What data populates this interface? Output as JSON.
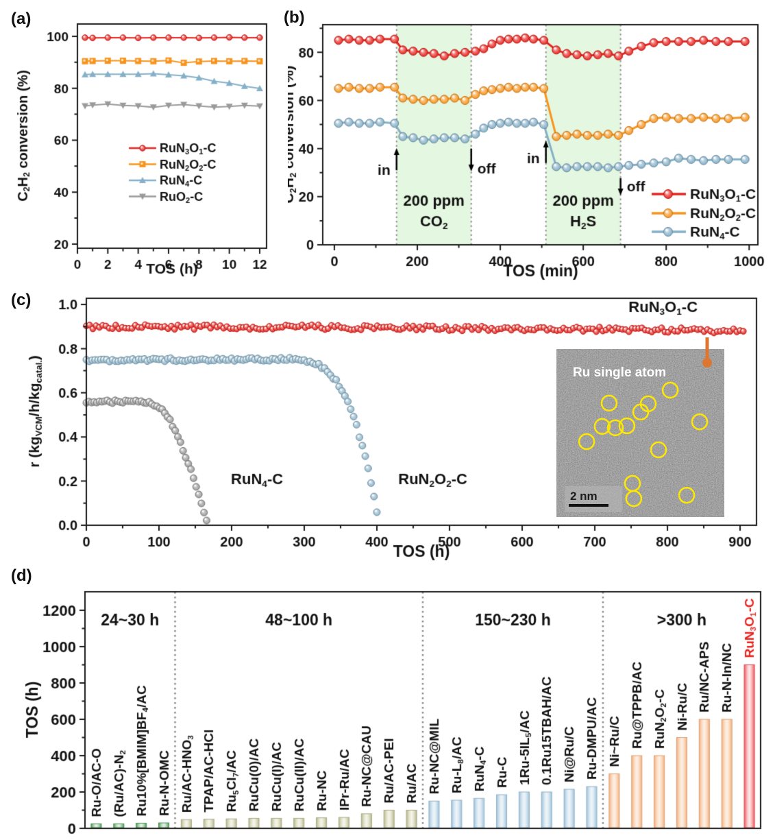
{
  "panel_labels": [
    "(a)",
    "(b)",
    "(c)",
    "(d)"
  ],
  "colors": {
    "red": "#e8241f",
    "orange": "#f7941d",
    "blue": "#85b0c7",
    "gray": "#9a9a9a",
    "region_green": "#e4f7e0",
    "dashed": "#8f8f8f",
    "pointer": "#dd7631",
    "circle_yellow": "#ffe800",
    "axis": "#1a1a1a",
    "text": "#111111"
  },
  "chart_data": [
    {
      "id": "a",
      "type": "line",
      "xlabel": "TOS (h)",
      "ylabel": "C{2}H{2} conversion (%)",
      "xticks": [
        0,
        2,
        4,
        6,
        8,
        10,
        12
      ],
      "xminor": [
        1,
        3,
        5,
        7,
        9,
        11
      ],
      "yticks": [
        20,
        40,
        60,
        80,
        100
      ],
      "yminor": [
        30,
        50,
        70,
        90
      ],
      "xlim": [
        0,
        12.45
      ],
      "ylim": [
        18.4,
        104.75
      ],
      "x": [
        0.5,
        1,
        2,
        3,
        4,
        5,
        6,
        7,
        8,
        9,
        10,
        11,
        12
      ],
      "series": [
        {
          "name": "RuN{3}O{1}-C",
          "color": "#e8241f",
          "marker": "circle",
          "values": [
            99.5,
            99.4,
            99.5,
            99.5,
            99.4,
            99.5,
            99.5,
            99.5,
            99.4,
            99.5,
            99.6,
            99.5,
            99.5
          ]
        },
        {
          "name": "RuN{2}O{2}-C",
          "color": "#f7941d",
          "marker": "square",
          "values": [
            90.4,
            90.5,
            90.6,
            90.6,
            90.5,
            90.4,
            90.7,
            89.8,
            90.3,
            90.5,
            90.4,
            90.5,
            90.4
          ]
        },
        {
          "name": "RuN{4}-C",
          "color": "#85b0c7",
          "marker": "triangle-up",
          "values": [
            85.3,
            85.4,
            85.4,
            85.4,
            85.4,
            85.6,
            85.2,
            84.8,
            84.0,
            82.7,
            82.0,
            80.8,
            79.9
          ]
        },
        {
          "name": "RuO{2}-C",
          "color": "#9a9a9a",
          "marker": "triangle-down",
          "values": [
            73.2,
            73.5,
            73.9,
            73.4,
            73.2,
            72.7,
            73.4,
            73.7,
            73.2,
            72.7,
            73.0,
            73.4,
            73.1
          ]
        }
      ]
    },
    {
      "id": "b",
      "type": "line",
      "xlabel": "TOS (min)",
      "ylabel": "C{2}H{2} conversion (%)",
      "xticks": [
        0,
        200,
        400,
        600,
        800,
        1000
      ],
      "xminor": [
        100,
        300,
        500,
        700,
        900
      ],
      "yticks": [
        0,
        20,
        40,
        60,
        80
      ],
      "yminor": [
        10,
        30,
        50,
        70,
        90
      ],
      "xlim": [
        -28,
        1021
      ],
      "ylim": [
        0,
        91.5
      ],
      "regions": [
        {
          "x0": 150,
          "x1": 330,
          "line1": "200 ppm",
          "line2": "CO{2}",
          "label_y": [
            16.2,
            7.6
          ]
        },
        {
          "x0": 510,
          "x1": 690,
          "line1": "200 ppm",
          "line2": "H{2}S",
          "label_y": [
            16.2,
            7.6
          ]
        }
      ],
      "dashed_x": [
        150,
        330,
        510,
        690
      ],
      "arrows": [
        {
          "x": 150,
          "y_tail": 31,
          "y_head": 40.2,
          "text": "in",
          "tx": -9,
          "ty": 31
        },
        {
          "x": 330,
          "y_tail": 40,
          "y_head": 30.5,
          "text": "off",
          "tx": 9,
          "ty": 31.5
        },
        {
          "x": 510,
          "y_tail": 34,
          "y_head": 43.3,
          "text": "in",
          "tx": -9,
          "ty": 36
        },
        {
          "x": 690,
          "y_tail": 27.7,
          "y_head": 20.5,
          "text": "off",
          "tx": 9,
          "ty": 24.3
        }
      ],
      "x": [
        10,
        35,
        60,
        85,
        110,
        145,
        165,
        190,
        215,
        240,
        265,
        290,
        315,
        340,
        360,
        380,
        400,
        420,
        440,
        460,
        480,
        505,
        535,
        560,
        585,
        610,
        635,
        660,
        685,
        710,
        740,
        770,
        800,
        830,
        860,
        890,
        920,
        950,
        990
      ],
      "series": [
        {
          "name": "RuN{3}O{1}-C",
          "color": "#e8241f",
          "values": [
            85,
            85.5,
            85,
            85,
            85.5,
            85.5,
            81,
            80.5,
            80,
            79.5,
            78.5,
            79.5,
            80,
            80.5,
            81.5,
            83.5,
            85,
            85.5,
            85.5,
            86,
            85.5,
            85,
            81,
            79.5,
            79,
            78.5,
            79,
            79.5,
            78.5,
            80.5,
            82.5,
            84,
            84.5,
            84.5,
            84.5,
            85,
            84.5,
            84.5,
            84.5
          ]
        },
        {
          "name": "RuN{2}O{2}-C",
          "color": "#f7941d",
          "values": [
            65,
            65.5,
            65,
            65,
            65.5,
            65.5,
            61,
            60.5,
            60,
            60.5,
            60.5,
            61,
            60,
            62.5,
            64,
            64.5,
            65,
            65.5,
            65,
            65.5,
            65.5,
            65,
            45,
            45.5,
            46,
            45.5,
            45.5,
            46,
            45.5,
            47.5,
            50,
            52.5,
            53,
            52.5,
            52.5,
            53,
            52.5,
            52.5,
            53
          ]
        },
        {
          "name": "RuN{4}-C",
          "color": "#85b0c7",
          "values": [
            50.5,
            51,
            50.5,
            50.5,
            51,
            50.5,
            45,
            44.5,
            43.5,
            44,
            44.5,
            44.5,
            44,
            46,
            48.5,
            50,
            50.5,
            51,
            50.5,
            50.5,
            51,
            50,
            32.5,
            32,
            32.5,
            32.5,
            32.5,
            32,
            32.5,
            33,
            33.5,
            34,
            34.5,
            36,
            35.5,
            35,
            35.5,
            35.5,
            35.5
          ]
        }
      ]
    },
    {
      "id": "c",
      "type": "scatter",
      "xlabel": "TOS (h)",
      "ylabel": "r (kg{VCM}/h/kg{catal.})",
      "xticks": [
        0,
        100,
        200,
        300,
        400,
        500,
        600,
        700,
        800,
        900
      ],
      "xminor": [
        50,
        150,
        250,
        350,
        450,
        550,
        650,
        750,
        850
      ],
      "yticks": [
        0.0,
        0.2,
        0.4,
        0.6,
        0.8,
        1.0
      ],
      "ytick_labels": [
        "0.0",
        "0.2",
        "0.4",
        "0.6",
        "0.8",
        "1.0"
      ],
      "yminor": [
        0.1,
        0.3,
        0.5,
        0.7,
        0.9
      ],
      "xlim": [
        0,
        922.6
      ],
      "ylim": [
        0,
        1.028
      ],
      "series": [
        {
          "name": "RuN{3}O{1}-C",
          "color": "#e8241f",
          "radius": 4.3,
          "step": 4.5,
          "jitter": 0.011,
          "keypoints": [
            [
              0,
              0.9
            ],
            [
              150,
              0.897
            ],
            [
              300,
              0.898
            ],
            [
              450,
              0.893
            ],
            [
              600,
              0.89
            ],
            [
              750,
              0.886
            ],
            [
              905,
              0.88
            ]
          ]
        },
        {
          "name": "RuN{2}O{2}-C",
          "color": "#8fb6cc",
          "radius": 5,
          "step": 4,
          "jitter": 0.007,
          "keypoints": [
            [
              0,
              0.748
            ],
            [
              285,
              0.752
            ],
            [
              305,
              0.745
            ],
            [
              320,
              0.725
            ],
            [
              335,
              0.69
            ],
            [
              347,
              0.64
            ],
            [
              357,
              0.58
            ],
            [
              365,
              0.52
            ],
            [
              372,
              0.45
            ],
            [
              378,
              0.38
            ],
            [
              384,
              0.31
            ],
            [
              389,
              0.24
            ],
            [
              394,
              0.17
            ],
            [
              398,
              0.1
            ],
            [
              402,
              0.03
            ]
          ]
        },
        {
          "name": "RuN{4}-C",
          "color": "#9a9a9a",
          "radius": 5,
          "step": 3.6,
          "jitter": 0.007,
          "keypoints": [
            [
              0,
              0.558
            ],
            [
              75,
              0.56
            ],
            [
              90,
              0.552
            ],
            [
              100,
              0.535
            ],
            [
              108,
              0.51
            ],
            [
              115,
              0.475
            ],
            [
              122,
              0.43
            ],
            [
              128,
              0.385
            ],
            [
              134,
              0.335
            ],
            [
              140,
              0.285
            ],
            [
              146,
              0.23
            ],
            [
              151,
              0.18
            ],
            [
              156,
              0.13
            ],
            [
              160,
              0.085
            ],
            [
              164,
              0.04
            ],
            [
              167,
              0.015
            ]
          ]
        }
      ],
      "labels": [
        {
          "text": "RuN{4}-C",
          "x": 235,
          "y": 0.185,
          "size": 22
        },
        {
          "text": "RuN{2}O{2}-C",
          "x": 477,
          "y": 0.185,
          "size": 22
        },
        {
          "text": "RuN{3}O{1}-C",
          "x": 794,
          "y": 0.966,
          "size": 22
        }
      ],
      "inset": {
        "title": "Ru single atom",
        "scale_label": "2 nm",
        "circle_positions": [
          [
            67.8,
            24.5
          ],
          [
            31.4,
            32.2
          ],
          [
            50.2,
            37.5
          ],
          [
            54.7,
            32.6
          ],
          [
            27.3,
            46.1
          ],
          [
            35.1,
            46.9
          ],
          [
            42,
            45.7
          ],
          [
            85.3,
            43.3
          ],
          [
            18,
            55.1
          ],
          [
            60.8,
            60
          ],
          [
            45.3,
            80
          ],
          [
            46.1,
            89
          ],
          [
            77.6,
            87
          ]
        ]
      }
    },
    {
      "id": "d",
      "type": "bar",
      "ylabel": "TOS (h)",
      "yticks": [
        0,
        200,
        400,
        600,
        800,
        1000,
        1200
      ],
      "yminor": [
        100,
        300,
        500,
        700,
        900,
        1100
      ],
      "ylim": [
        0,
        1302
      ],
      "groups": [
        {
          "title": "24~30 h",
          "edge": "#4f9e58",
          "center": "#eaf5ea",
          "bars": [
            {
              "label": "Ru-O/AC-O",
              "value": 25
            },
            {
              "label": "(Ru/AC)-N{2}",
              "value": 25
            },
            {
              "label": "Ru10%[BMIM]BF{4}/AC",
              "value": 28
            },
            {
              "label": "Ru-N-OMC",
              "value": 30
            }
          ]
        },
        {
          "title": "48~100 h",
          "edge": "#b8bb90",
          "center": "#f7f6ea",
          "bars": [
            {
              "label": "Ru/AC-HNO{3}",
              "value": 48
            },
            {
              "label": "TPAP/AC-HCl",
              "value": 50
            },
            {
              "label": "Ru{5}Cl{7}/AC",
              "value": 52
            },
            {
              "label": "RuCu(0)/AC",
              "value": 55
            },
            {
              "label": "RuCu(I)/AC",
              "value": 55
            },
            {
              "label": "RuCu(II)/AC",
              "value": 55
            },
            {
              "label": "Ru-NC",
              "value": 58
            },
            {
              "label": "IPr-Ru/AC",
              "value": 60
            },
            {
              "label": "Ru-NC@CAU",
              "value": 80
            },
            {
              "label": "Ru/AC-PEI",
              "value": 100
            },
            {
              "label": "Ru/AC",
              "value": 100
            }
          ]
        },
        {
          "title": "150~230 h",
          "edge": "#9fc3dc",
          "center": "#f0f6fa",
          "bars": [
            {
              "label": "Ru-NC@MIL",
              "value": 150
            },
            {
              "label": "Ru-L{8}/AC",
              "value": 155
            },
            {
              "label": "RuN{4}-C",
              "value": 165
            },
            {
              "label": "Ru-C",
              "value": 185
            },
            {
              "label": "1Ru-5IL{5}/AC",
              "value": 200
            },
            {
              "label": "0.1Ru15TBAH/AC",
              "value": 200
            },
            {
              "label": "Ni@Ru/C",
              "value": 215
            },
            {
              "label": "Ru-DMPU/AC",
              "value": 230
            }
          ]
        },
        {
          "title": ">300 h",
          "edge": "#f5b07f",
          "center": "#fdf1e6",
          "bars": [
            {
              "label": "Ni~Ru/C",
              "value": 300
            },
            {
              "label": "Ru@TPPB/AC",
              "value": 400
            },
            {
              "label": "RuN{2}O{2}-C",
              "value": 400
            },
            {
              "label": "Ni-Ru/C",
              "value": 500
            },
            {
              "label": "Ru/NC-APS",
              "value": 600
            },
            {
              "label": "Ru-N-In/NC",
              "value": 600
            },
            {
              "label": "RuN{3}O{1}-C",
              "value": 900,
              "highlight": true
            }
          ]
        }
      ],
      "highlight": {
        "edge": "#f1575d",
        "center": "#fdeceb",
        "label_color": "#e8241f"
      }
    }
  ]
}
